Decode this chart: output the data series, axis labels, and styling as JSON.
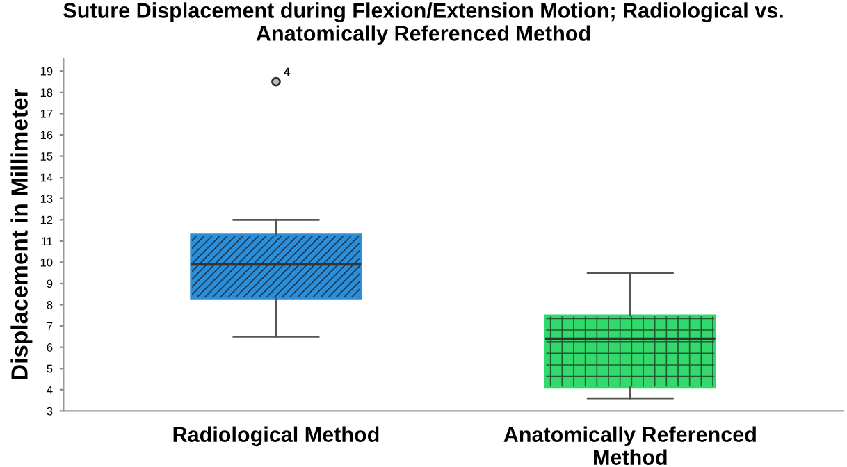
{
  "chart_data": {
    "type": "box",
    "title": "Suture Displacement during Flexion/Extension Motion; Radiological vs.\nAnatomically Referenced Method",
    "ylabel": "Displacement in Millimeter",
    "categories": [
      "Radiological Method",
      "Anatomically Referenced\nMethod"
    ],
    "boxes": [
      {
        "low": 6.5,
        "q1": 8.3,
        "median": 9.9,
        "q3": 11.3,
        "high": 12.0,
        "outliers": [
          18.5
        ]
      },
      {
        "low": 3.6,
        "q1": 4.1,
        "median": 6.4,
        "q3": 7.5,
        "high": 9.5
      }
    ],
    "colors": [
      "#2b8ed8",
      "#33d96c"
    ],
    "annotations": [
      "4"
    ],
    "ylim": [
      3,
      19.6
    ],
    "yticks": [
      3,
      4,
      5,
      6,
      7,
      8,
      9,
      10,
      11,
      12,
      13,
      14,
      15,
      16,
      17,
      18,
      19
    ],
    "grid": false
  }
}
